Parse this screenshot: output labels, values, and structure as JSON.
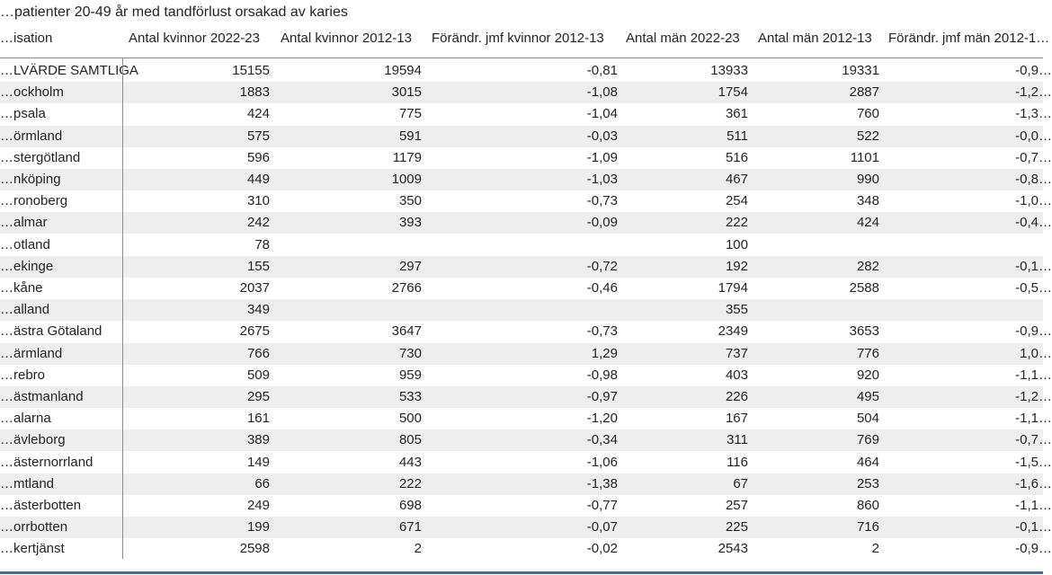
{
  "chart_data": {
    "type": "table",
    "title": "…patienter 20-49 år med tandförlust orsakad av karies",
    "columns": [
      "…isation",
      "Antal kvinnor 2022-23",
      "Antal kvinnor 2012-13",
      "Förändr. jmf kvinnor 2012-13",
      "Antal män 2022-23",
      "Antal män 2012-13",
      "Förändr. jmf män 2012-1…"
    ],
    "rows": [
      {
        "name": "…LVÄRDE SAMTLIGA",
        "values": [
          "15155",
          "19594",
          "-0,81",
          "13933",
          "19331",
          "-0,9…"
        ]
      },
      {
        "name": "…ockholm",
        "values": [
          "1883",
          "3015",
          "-1,08",
          "1754",
          "2887",
          "-1,2…"
        ]
      },
      {
        "name": "…psala",
        "values": [
          "424",
          "775",
          "-1,04",
          "361",
          "760",
          "-1,3…"
        ]
      },
      {
        "name": "…örmland",
        "values": [
          "575",
          "591",
          "-0,03",
          "511",
          "522",
          "-0,0…"
        ]
      },
      {
        "name": "…stergötland",
        "values": [
          "596",
          "1179",
          "-1,09",
          "516",
          "1101",
          "-0,7…"
        ]
      },
      {
        "name": "…nköping",
        "values": [
          "449",
          "1009",
          "-1,03",
          "467",
          "990",
          "-0,8…"
        ]
      },
      {
        "name": "…ronoberg",
        "values": [
          "310",
          "350",
          "-0,73",
          "254",
          "348",
          "-1,0…"
        ]
      },
      {
        "name": "…almar",
        "values": [
          "242",
          "393",
          "-0,09",
          "222",
          "424",
          "-0,4…"
        ]
      },
      {
        "name": "…otland",
        "values": [
          "78",
          "",
          "",
          "100",
          "",
          ""
        ]
      },
      {
        "name": "…ekinge",
        "values": [
          "155",
          "297",
          "-0,72",
          "192",
          "282",
          "-0,1…"
        ]
      },
      {
        "name": "…kåne",
        "values": [
          "2037",
          "2766",
          "-0,46",
          "1794",
          "2588",
          "-0,5…"
        ]
      },
      {
        "name": "…alland",
        "values": [
          "349",
          "",
          "",
          "355",
          "",
          ""
        ]
      },
      {
        "name": "…ästra Götaland",
        "values": [
          "2675",
          "3647",
          "-0,73",
          "2349",
          "3653",
          "-0,9…"
        ]
      },
      {
        "name": "…ärmland",
        "values": [
          "766",
          "730",
          "1,29",
          "737",
          "776",
          "1,0…"
        ]
      },
      {
        "name": "…rebro",
        "values": [
          "509",
          "959",
          "-0,98",
          "403",
          "920",
          "-1,1…"
        ]
      },
      {
        "name": "…ästmanland",
        "values": [
          "295",
          "533",
          "-0,97",
          "226",
          "495",
          "-1,2…"
        ]
      },
      {
        "name": "…alarna",
        "values": [
          "161",
          "500",
          "-1,20",
          "167",
          "504",
          "-1,1…"
        ]
      },
      {
        "name": "…ävleborg",
        "values": [
          "389",
          "805",
          "-0,34",
          "311",
          "769",
          "-0,7…"
        ]
      },
      {
        "name": "…ästernorrland",
        "values": [
          "149",
          "443",
          "-1,06",
          "116",
          "464",
          "-1,5…"
        ]
      },
      {
        "name": "…mtland",
        "values": [
          "66",
          "222",
          "-1,38",
          "67",
          "253",
          "-1,6…"
        ]
      },
      {
        "name": "…ästerbotten",
        "values": [
          "249",
          "698",
          "-0,77",
          "257",
          "860",
          "-1,1…"
        ]
      },
      {
        "name": "…orrbotten",
        "values": [
          "199",
          "671",
          "-0,07",
          "225",
          "716",
          "-0,1…"
        ]
      },
      {
        "name": "…kertjänst",
        "values": [
          "2598",
          "2",
          "-0,02",
          "2543",
          "2",
          "-0,9…"
        ]
      }
    ]
  }
}
